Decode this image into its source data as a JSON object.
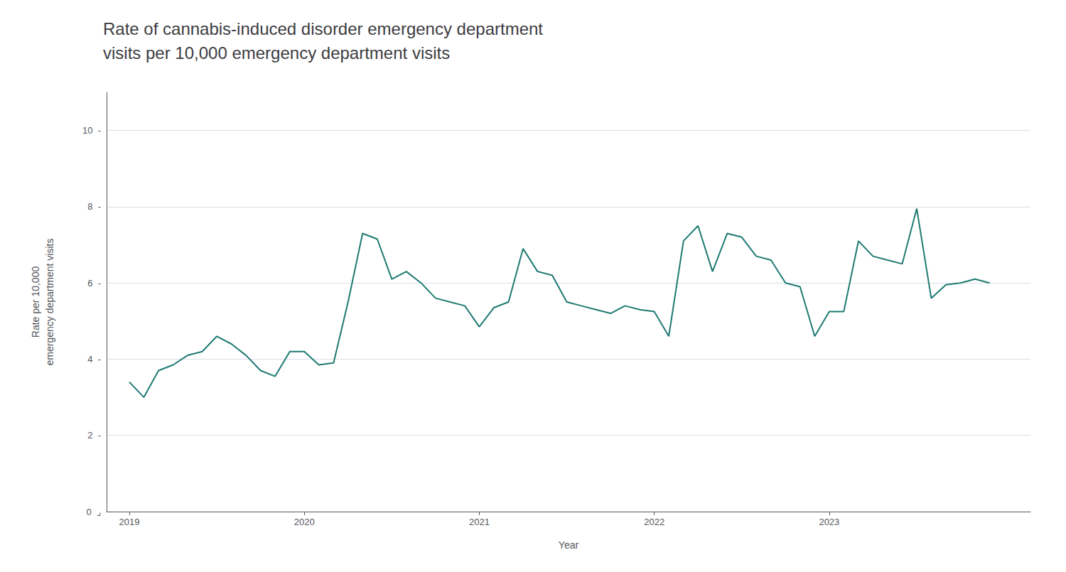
{
  "chart_data": {
    "type": "line",
    "title": "Rate of cannabis-induced disorder emergency department\nvisits per 10,000 emergency department visits",
    "xlabel": "Year",
    "ylabel": "Rate per 10,000\nemergency department visits",
    "color": "#1e7a72",
    "grid": "y",
    "x": [
      2019.0,
      2019.083,
      2019.167,
      2019.25,
      2019.333,
      2019.417,
      2019.5,
      2019.583,
      2019.667,
      2019.75,
      2019.833,
      2019.917,
      2020.0,
      2020.083,
      2020.167,
      2020.25,
      2020.333,
      2020.417,
      2020.5,
      2020.583,
      2020.667,
      2020.75,
      2020.833,
      2020.917,
      2021.0,
      2021.083,
      2021.167,
      2021.25,
      2021.333,
      2021.417,
      2021.5,
      2021.583,
      2021.667,
      2021.75,
      2021.833,
      2021.917,
      2022.0,
      2022.083,
      2022.167,
      2022.25,
      2022.333,
      2022.417,
      2022.5,
      2022.583,
      2022.667,
      2022.75,
      2022.833,
      2022.917,
      2023.0,
      2023.083,
      2023.167,
      2023.25,
      2023.333,
      2023.417,
      2023.5,
      2023.583,
      2023.667,
      2023.75,
      2023.833,
      2023.917
    ],
    "values": [
      3.4,
      3.0,
      3.7,
      3.85,
      4.1,
      4.2,
      4.6,
      4.4,
      4.1,
      3.7,
      3.55,
      4.2,
      4.2,
      3.85,
      3.9,
      5.5,
      7.3,
      7.15,
      6.1,
      6.3,
      6.0,
      5.6,
      5.5,
      5.4,
      4.85,
      5.35,
      5.5,
      6.9,
      6.3,
      6.2,
      5.5,
      5.4,
      5.3,
      5.2,
      5.4,
      5.3,
      5.25,
      4.6,
      7.1,
      7.5,
      6.3,
      7.3,
      7.2,
      6.7,
      6.6,
      6.0,
      5.9,
      4.6,
      5.25,
      5.25,
      7.1,
      6.7,
      6.6,
      6.5,
      7.95,
      5.6,
      5.95,
      6.0,
      6.1,
      6.0
    ],
    "xlim": [
      2018.87,
      2024.15
    ],
    "xticks": [
      2019,
      2020,
      2021,
      2022,
      2023
    ],
    "ylim": [
      0,
      11.0
    ],
    "yticks": [
      {
        "value": 0,
        "label": "0  ⌟"
      },
      {
        "value": 2,
        "label": "2  -"
      },
      {
        "value": 4,
        "label": "4  -"
      },
      {
        "value": 6,
        "label": "6  -"
      },
      {
        "value": 8,
        "label": "8  -"
      },
      {
        "value": 10,
        "label": "10  -"
      }
    ]
  }
}
